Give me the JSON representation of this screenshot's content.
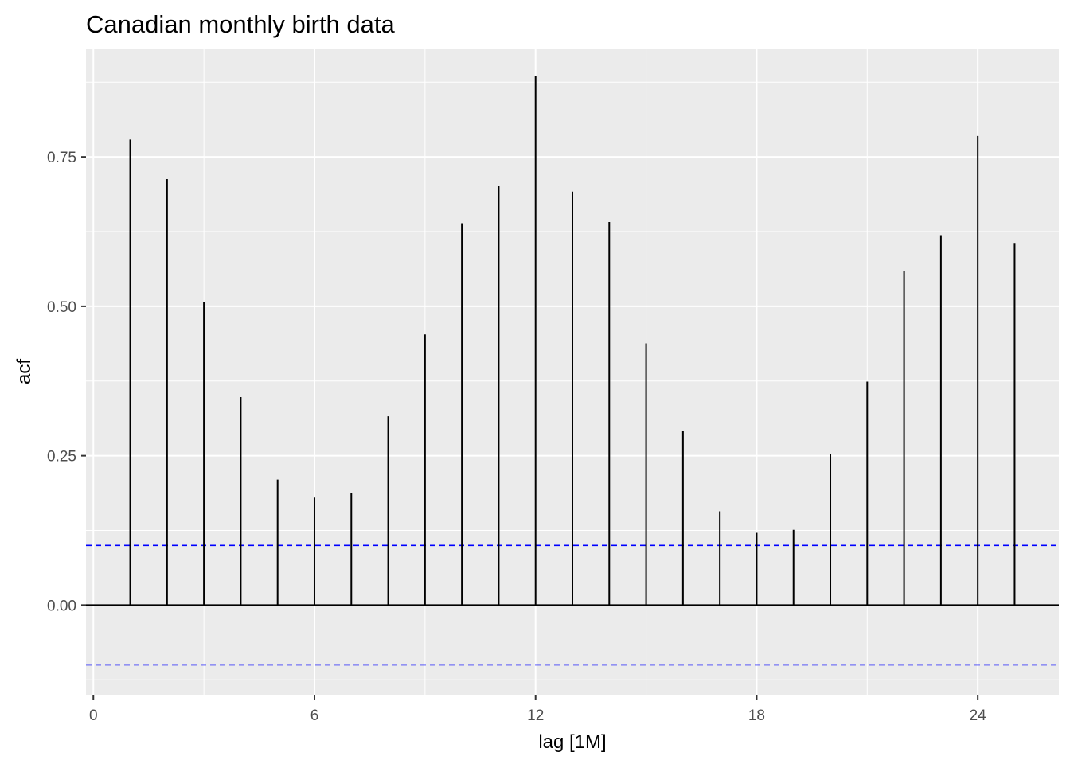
{
  "chart_data": {
    "type": "bar",
    "title": "Canadian monthly birth data",
    "xlabel": "lag [1M]",
    "ylabel": "acf",
    "x_ticks": [
      0,
      6,
      12,
      18,
      24
    ],
    "x_tick_labels": [
      "0",
      "6",
      "12",
      "18",
      "24"
    ],
    "y_ticks": [
      0.0,
      0.25,
      0.5,
      0.75
    ],
    "y_tick_labels": [
      "0.00",
      "0.25",
      "0.50",
      "0.75"
    ],
    "xlim": [
      -0.2,
      26.2
    ],
    "ylim": [
      -0.15,
      0.93
    ],
    "grid": true,
    "legend": "none",
    "lags": [
      1,
      2,
      3,
      4,
      5,
      6,
      7,
      8,
      9,
      10,
      11,
      12,
      13,
      14,
      15,
      16,
      17,
      18,
      19,
      20,
      21,
      22,
      23,
      24,
      25
    ],
    "acf": [
      0.779,
      0.713,
      0.507,
      0.348,
      0.21,
      0.18,
      0.187,
      0.316,
      0.453,
      0.639,
      0.701,
      0.885,
      0.692,
      0.641,
      0.438,
      0.292,
      0.157,
      0.121,
      0.126,
      0.253,
      0.374,
      0.559,
      0.619,
      0.785,
      0.606
    ],
    "confidence_bounds": [
      0.1,
      -0.1
    ],
    "colors": {
      "panel_background": "#ebebeb",
      "grid": "#ffffff",
      "bar": "#000000",
      "confidence_line": "#0000ff",
      "zero_line": "#000000",
      "tick_label": "#4d4d4d"
    }
  }
}
